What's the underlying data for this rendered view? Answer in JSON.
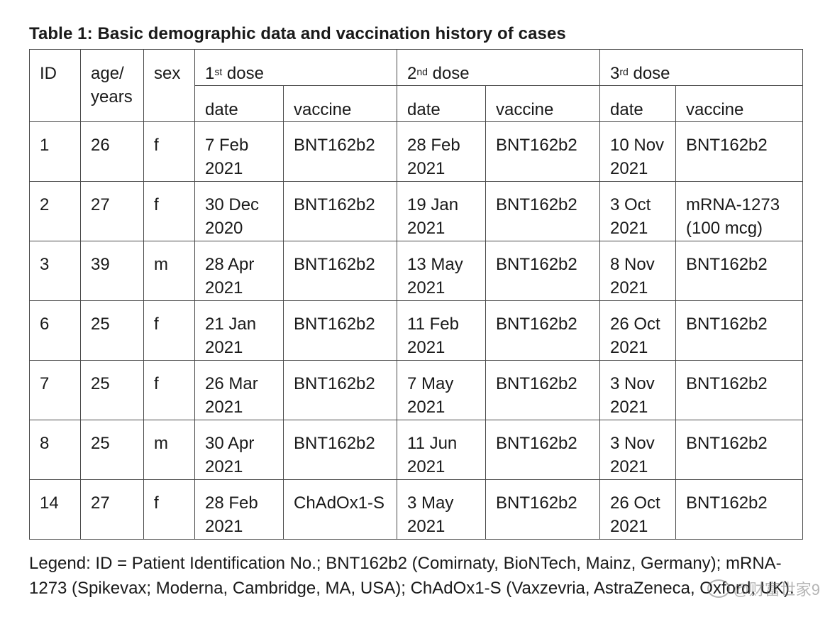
{
  "title": "Table 1: Basic demographic data and vaccination history of cases",
  "header": {
    "id": "ID",
    "age_line1": "age/",
    "age_line2": "years",
    "sex": "sex",
    "dose1": {
      "num": "1",
      "sup": "st",
      "word": " dose"
    },
    "dose2": {
      "num": "2",
      "sup": "nd",
      "word": " dose"
    },
    "dose3": {
      "num": "3",
      "sup": "rd",
      "word": " dose"
    },
    "date": "date",
    "vaccine": "vaccine"
  },
  "rows": [
    {
      "id": "1",
      "age": "26",
      "sex": "f",
      "d1_date1": "7 Feb",
      "d1_date2": "2021",
      "d1_vac1": "BNT162b2",
      "d1_vac2": "",
      "d2_date1": "28 Feb",
      "d2_date2": "2021",
      "d2_vac1": "BNT162b2",
      "d2_vac2": "",
      "d3_date1": "10 Nov",
      "d3_date2": "2021",
      "d3_vac1": "BNT162b2",
      "d3_vac2": ""
    },
    {
      "id": "2",
      "age": "27",
      "sex": "f",
      "d1_date1": "30 Dec",
      "d1_date2": "2020",
      "d1_vac1": "BNT162b2",
      "d1_vac2": "",
      "d2_date1": "19 Jan",
      "d2_date2": "2021",
      "d2_vac1": "BNT162b2",
      "d2_vac2": "",
      "d3_date1": "3 Oct",
      "d3_date2": "2021",
      "d3_vac1": "mRNA-1273",
      "d3_vac2": "(100 mcg)"
    },
    {
      "id": "3",
      "age": "39",
      "sex": "m",
      "d1_date1": "28 Apr",
      "d1_date2": "2021",
      "d1_vac1": "BNT162b2",
      "d1_vac2": "",
      "d2_date1": "13 May",
      "d2_date2": "2021",
      "d2_vac1": "BNT162b2",
      "d2_vac2": "",
      "d3_date1": "8 Nov",
      "d3_date2": "2021",
      "d3_vac1": "BNT162b2",
      "d3_vac2": ""
    },
    {
      "id": "6",
      "age": "25",
      "sex": "f",
      "d1_date1": "21 Jan",
      "d1_date2": "2021",
      "d1_vac1": "BNT162b2",
      "d1_vac2": "",
      "d2_date1": "11 Feb",
      "d2_date2": "2021",
      "d2_vac1": "BNT162b2",
      "d2_vac2": "",
      "d3_date1": "26 Oct",
      "d3_date2": "2021",
      "d3_vac1": "BNT162b2",
      "d3_vac2": ""
    },
    {
      "id": "7",
      "age": "25",
      "sex": "f",
      "d1_date1": "26 Mar",
      "d1_date2": "2021",
      "d1_vac1": "BNT162b2",
      "d1_vac2": "",
      "d2_date1": "7 May",
      "d2_date2": "2021",
      "d2_vac1": "BNT162b2",
      "d2_vac2": "",
      "d3_date1": "3 Nov",
      "d3_date2": "2021",
      "d3_vac1": "BNT162b2",
      "d3_vac2": ""
    },
    {
      "id": "8",
      "age": "25",
      "sex": "m",
      "d1_date1": "30 Apr",
      "d1_date2": "2021",
      "d1_vac1": "BNT162b2",
      "d1_vac2": "",
      "d2_date1": "11 Jun",
      "d2_date2": "2021",
      "d2_vac1": "BNT162b2",
      "d2_vac2": "",
      "d3_date1": "3 Nov",
      "d3_date2": "2021",
      "d3_vac1": "BNT162b2",
      "d3_vac2": ""
    },
    {
      "id": "14",
      "age": "27",
      "sex": "f",
      "d1_date1": "28 Feb",
      "d1_date2": "2021",
      "d1_vac1": "ChAdOx1-S",
      "d1_vac2": "",
      "d2_date1": "3 May",
      "d2_date2": "2021",
      "d2_vac1": "BNT162b2",
      "d2_vac2": "",
      "d3_date1": "26 Oct",
      "d3_date2": "2021",
      "d3_vac1": "BNT162b2",
      "d3_vac2": ""
    }
  ],
  "legend_line1": "Legend: ID = Patient Identification No.; BNT162b2 (Comirnaty, BioNTech, Mainz, Germany); mRNA-",
  "legend_line2": "1273 (Spikevax; Moderna, Cambridge, MA, USA); ChAdOx1-S (Vaxzevria, AstraZeneca, Oxford, UK).",
  "watermark": "@财富世家9"
}
